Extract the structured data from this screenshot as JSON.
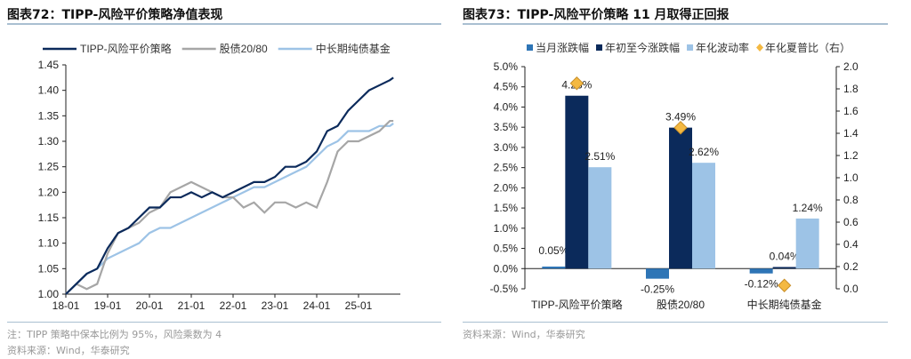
{
  "left": {
    "title": "图表72：TIPP-风险平价策略净值表现",
    "note": "注：TIPP 策略中保本比例为 95%，风险乘数为 4",
    "source": "资料来源：Wind，华泰研究"
  },
  "right": {
    "title": "图表73：TIPP-风险平价策略 11 月取得正回报",
    "source": "资料来源：Wind，华泰研究"
  },
  "chart_data": [
    {
      "type": "line",
      "yticks": [
        "1.00",
        "1.05",
        "1.10",
        "1.15",
        "1.20",
        "1.25",
        "1.30",
        "1.35",
        "1.40",
        "1.45"
      ],
      "ylim": [
        1.0,
        1.45
      ],
      "xticks": [
        "18-01",
        "19-01",
        "20-01",
        "21-01",
        "22-01",
        "23-01",
        "24-01",
        "25-01"
      ],
      "x": [
        "2018-01",
        "2018-04",
        "2018-07",
        "2018-10",
        "2019-01",
        "2019-04",
        "2019-07",
        "2019-10",
        "2020-01",
        "2020-04",
        "2020-07",
        "2020-10",
        "2021-01",
        "2021-04",
        "2021-07",
        "2021-10",
        "2022-01",
        "2022-04",
        "2022-07",
        "2022-10",
        "2023-01",
        "2023-04",
        "2023-07",
        "2023-10",
        "2024-01",
        "2024-04",
        "2024-07",
        "2024-10",
        "2025-01",
        "2025-04",
        "2025-07",
        "2025-10",
        "2025-11"
      ],
      "series": [
        {
          "name": "TIPP-风险平价策略",
          "color": "#0b2a5b",
          "values": [
            1.0,
            1.02,
            1.04,
            1.05,
            1.09,
            1.12,
            1.13,
            1.15,
            1.17,
            1.17,
            1.19,
            1.19,
            1.2,
            1.19,
            1.2,
            1.19,
            1.2,
            1.21,
            1.22,
            1.22,
            1.23,
            1.25,
            1.25,
            1.26,
            1.28,
            1.32,
            1.33,
            1.36,
            1.38,
            1.4,
            1.41,
            1.42,
            1.425
          ]
        },
        {
          "name": "股债20/80",
          "color": "#a6a6a6",
          "values": [
            1.0,
            1.02,
            1.01,
            1.02,
            1.08,
            1.12,
            1.13,
            1.14,
            1.16,
            1.17,
            1.2,
            1.21,
            1.22,
            1.21,
            1.2,
            1.19,
            1.19,
            1.17,
            1.18,
            1.16,
            1.18,
            1.18,
            1.17,
            1.18,
            1.17,
            1.22,
            1.28,
            1.3,
            1.3,
            1.31,
            1.32,
            1.34,
            1.34
          ]
        },
        {
          "name": "中长期纯债基金",
          "color": "#9dc3e6",
          "values": [
            1.0,
            1.02,
            1.04,
            1.05,
            1.07,
            1.08,
            1.09,
            1.1,
            1.12,
            1.13,
            1.13,
            1.14,
            1.15,
            1.16,
            1.17,
            1.18,
            1.19,
            1.2,
            1.21,
            1.21,
            1.22,
            1.23,
            1.24,
            1.25,
            1.27,
            1.29,
            1.3,
            1.32,
            1.32,
            1.32,
            1.33,
            1.33,
            1.335
          ]
        }
      ]
    },
    {
      "type": "bar",
      "categories": [
        "TIPP-风险平价策略",
        "股债20/80",
        "中长期纯债基金"
      ],
      "yticks": [
        "-0.5%",
        "0.0%",
        "0.5%",
        "1.0%",
        "1.5%",
        "2.0%",
        "2.5%",
        "3.0%",
        "3.5%",
        "4.0%",
        "4.5%",
        "5.0%"
      ],
      "ylim": [
        -0.5,
        5.0
      ],
      "y2ticks": [
        "0.0",
        "0.2",
        "0.4",
        "0.6",
        "0.8",
        "1.0",
        "1.2",
        "1.4",
        "1.6",
        "1.8",
        "2.0"
      ],
      "y2lim": [
        0,
        2.0
      ],
      "series": [
        {
          "name": "当月涨跌幅",
          "color": "#2e75b6",
          "values": [
            0.05,
            -0.25,
            -0.12
          ],
          "labels": [
            "0.05%",
            "-0.25%",
            "-0.12%"
          ]
        },
        {
          "name": "年初至今涨跌幅",
          "color": "#0b2a5b",
          "values": [
            4.28,
            3.49,
            0.04
          ],
          "labels": [
            "4.28%",
            "3.49%",
            "0.04%"
          ]
        },
        {
          "name": "年化波动率",
          "color": "#9dc3e6",
          "values": [
            2.51,
            2.62,
            1.24
          ],
          "labels": [
            "2.51%",
            "2.62%",
            "1.24%"
          ]
        },
        {
          "name": "年化夏普比（右）",
          "color": "#f4b942",
          "axis": "right",
          "values": [
            1.85,
            1.45,
            0.03
          ]
        }
      ]
    }
  ]
}
